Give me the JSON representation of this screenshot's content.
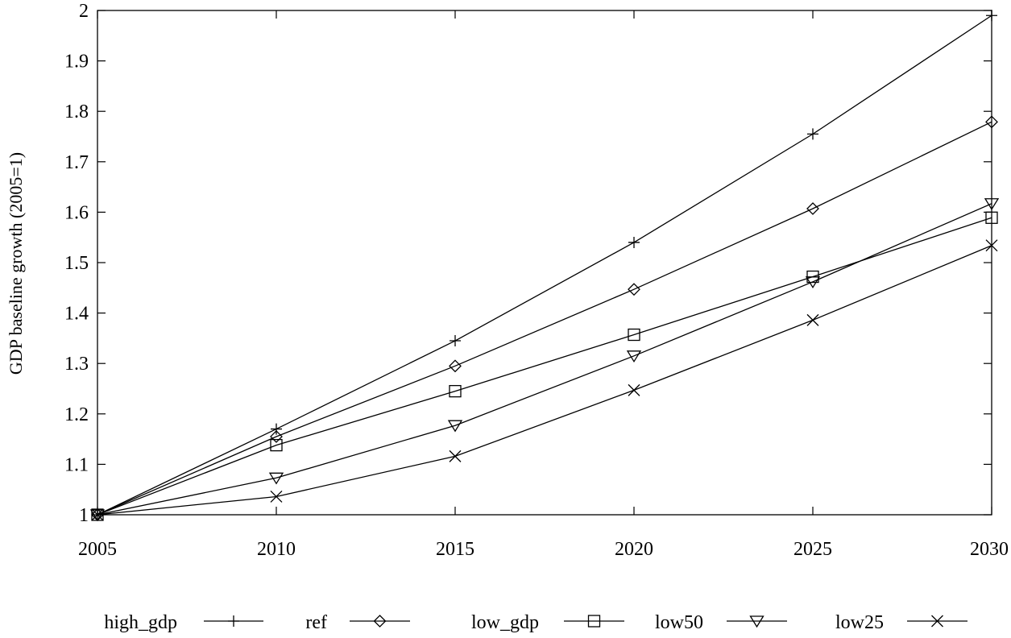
{
  "chart_data": {
    "type": "line",
    "title": "",
    "xlabel": "",
    "ylabel": "GDP baseline growth (2005=1)",
    "x": [
      2005,
      2010,
      2015,
      2020,
      2025,
      2030
    ],
    "xlim": [
      2005,
      2030
    ],
    "ylim": [
      1,
      2
    ],
    "xticks": [
      "2005",
      "2010",
      "2015",
      "2020",
      "2025",
      "2030"
    ],
    "yticks": [
      "1",
      "1.1",
      "1.2",
      "1.3",
      "1.4",
      "1.5",
      "1.6",
      "1.7",
      "1.8",
      "1.9",
      "2"
    ],
    "grid": false,
    "legend_position": "bottom",
    "series": [
      {
        "name": "high_gdp",
        "marker": "plus",
        "values": [
          1.0,
          1.17,
          1.345,
          1.54,
          1.755,
          1.99
        ]
      },
      {
        "name": "ref",
        "marker": "diamond",
        "values": [
          1.0,
          1.155,
          1.295,
          1.447,
          1.607,
          1.779
        ]
      },
      {
        "name": "low_gdp",
        "marker": "square",
        "values": [
          1.0,
          1.138,
          1.245,
          1.357,
          1.472,
          1.589
        ]
      },
      {
        "name": "low50",
        "marker": "triangle-down",
        "values": [
          1.0,
          1.073,
          1.177,
          1.315,
          1.462,
          1.617
        ]
      },
      {
        "name": "low25",
        "marker": "cross",
        "values": [
          1.0,
          1.036,
          1.116,
          1.247,
          1.386,
          1.534
        ]
      }
    ]
  }
}
